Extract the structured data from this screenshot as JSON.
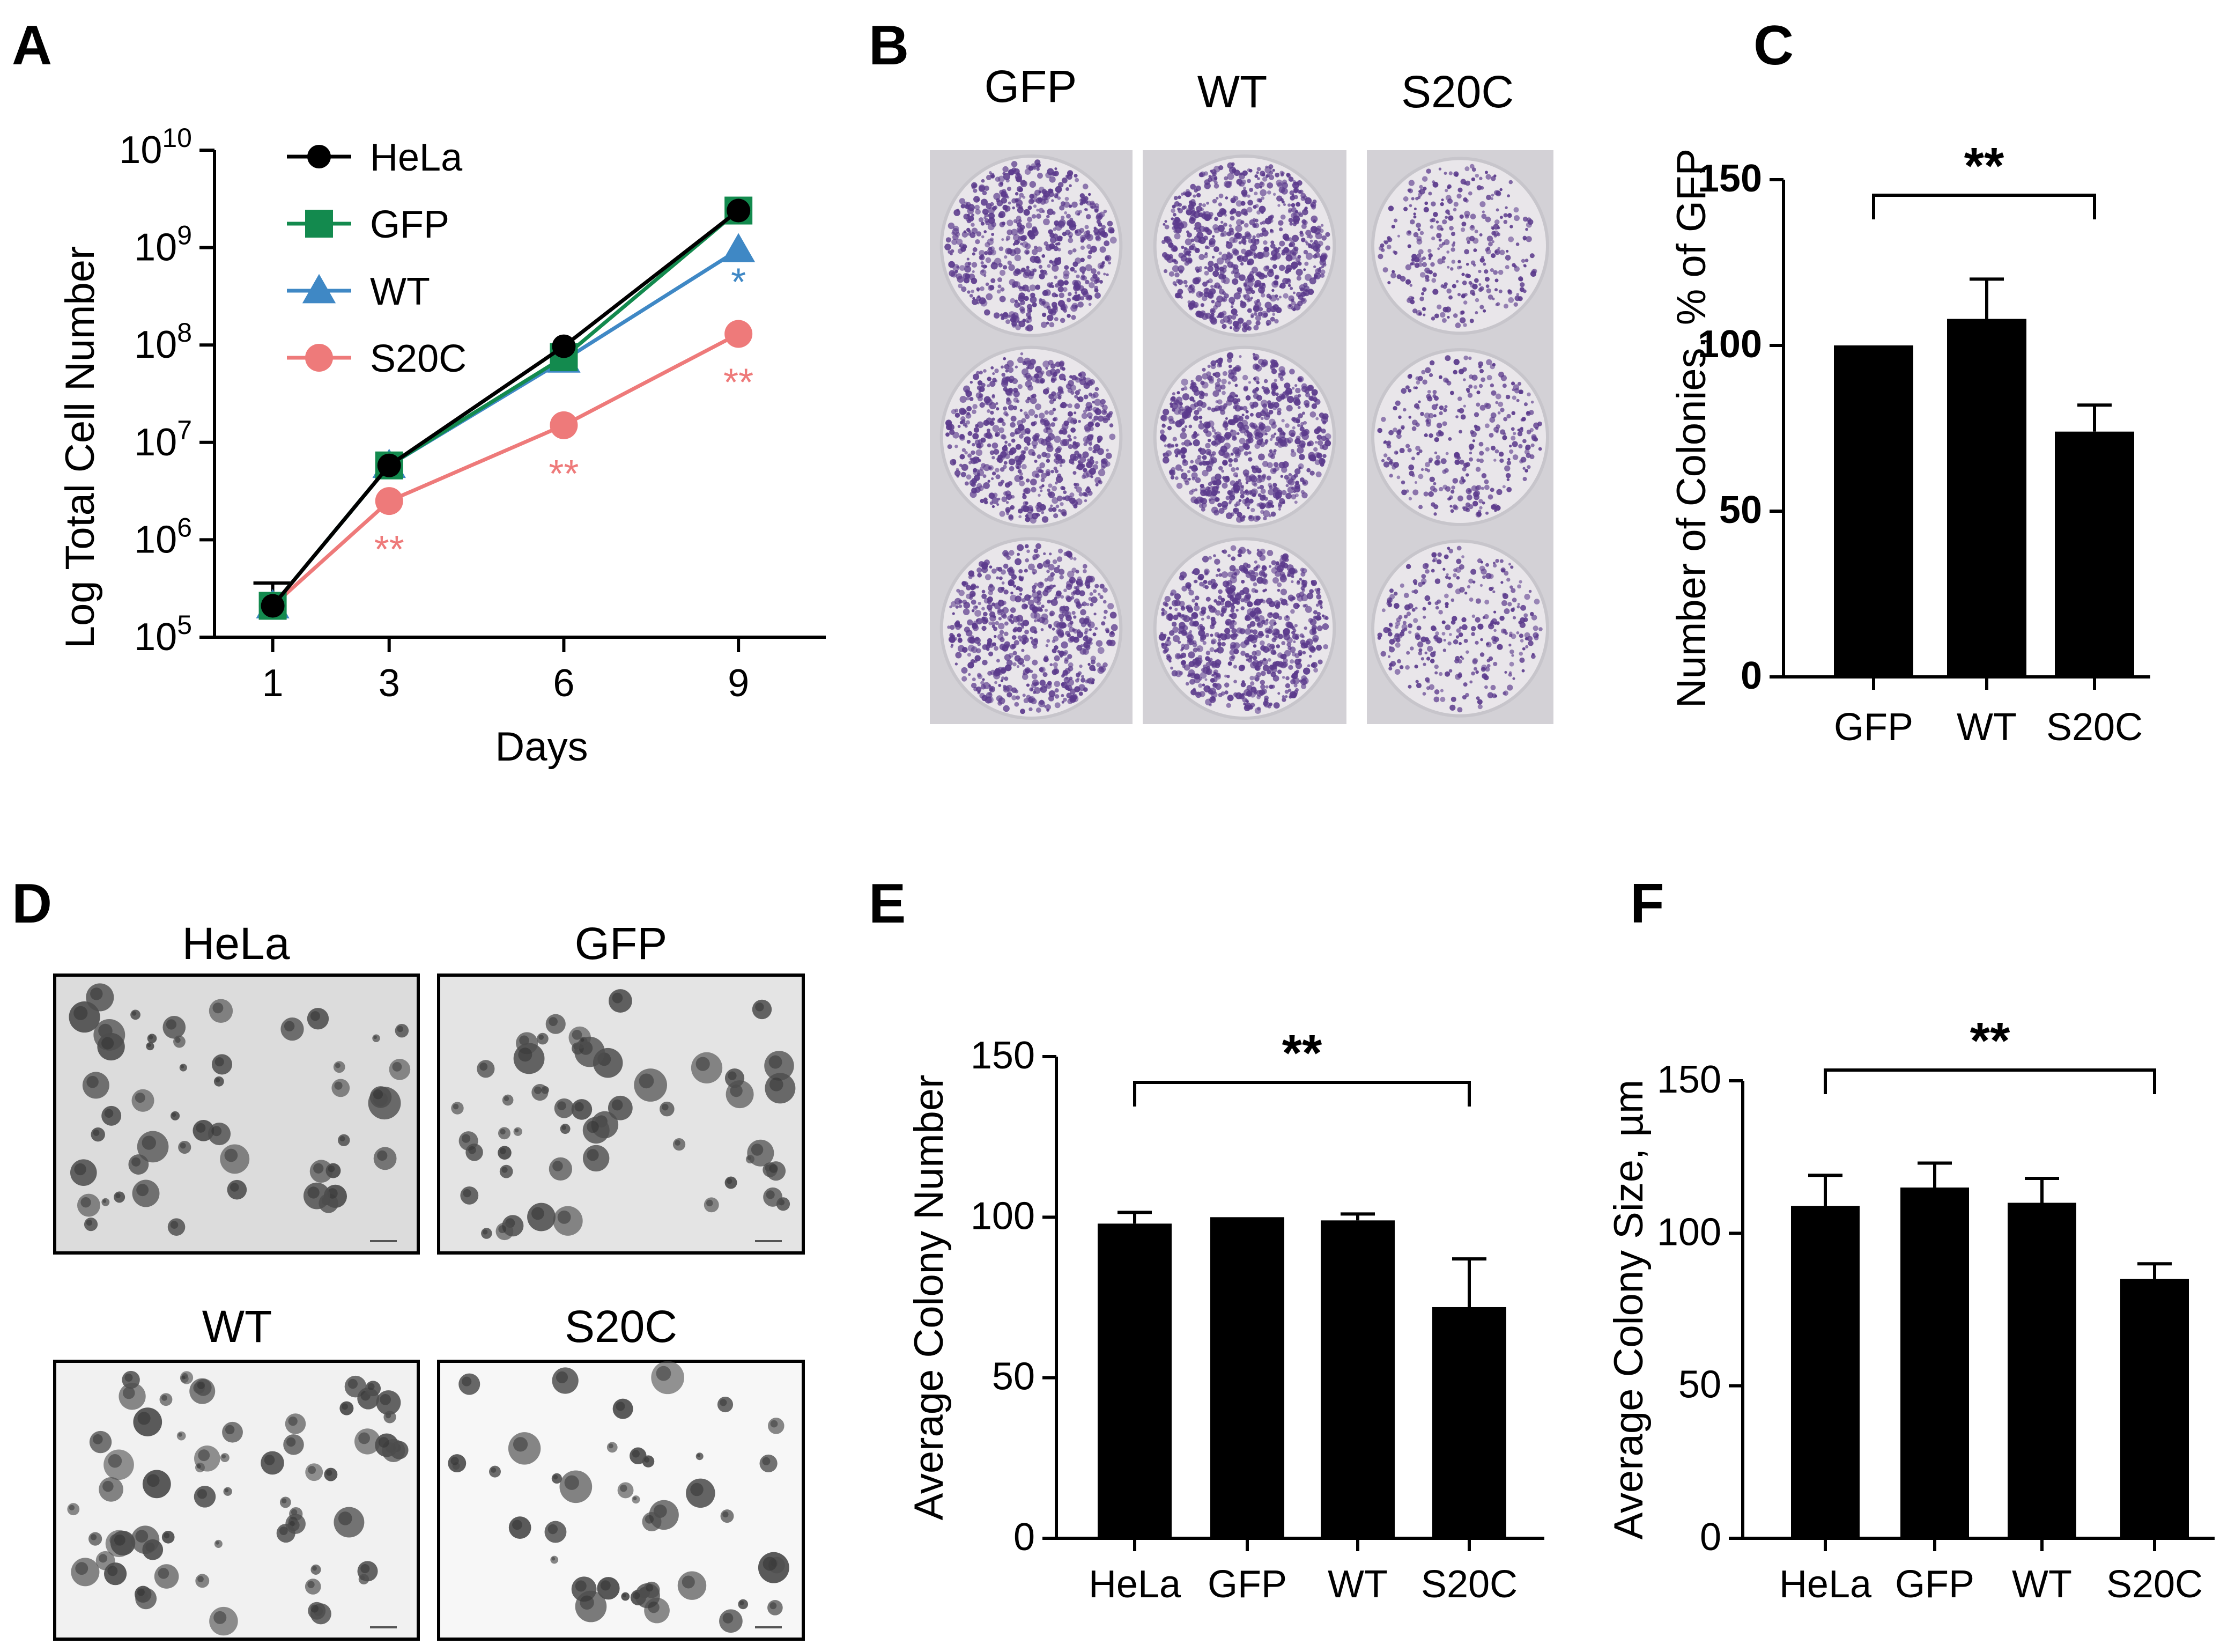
{
  "panels": {
    "A": "A",
    "B": "B",
    "C": "C",
    "D": "D",
    "E": "E",
    "F": "F"
  },
  "colors": {
    "HeLa": "#000000",
    "GFP": "#138a4e",
    "WT": "#3f88c5",
    "S20C": "#ee7a7a",
    "bar": "#000000",
    "crystal_violet": "#5b3a8c",
    "well_bg": "#e9e6ea",
    "plate_bg": "#d3d1d6"
  },
  "photo_labels": {
    "B": [
      "GFP",
      "WT",
      "S20C"
    ],
    "D": [
      "HeLa",
      "GFP",
      "WT",
      "S20C"
    ]
  },
  "chart_data": [
    {
      "id": "A",
      "type": "line",
      "xlabel": "Days",
      "ylabel": "Log Total Cell Number",
      "x": [
        1,
        3,
        6,
        9
      ],
      "x_ticks": [
        "1",
        "3",
        "6",
        "9"
      ],
      "y_scale": "log",
      "ylim": [
        100000,
        10000000000
      ],
      "y_tick_exponents": [
        "5",
        "6",
        "7",
        "8",
        "9",
        "10"
      ],
      "y_tick_base": "10",
      "legend": [
        "HeLa",
        "GFP",
        "WT",
        "S20C"
      ],
      "legend_position": "top-left",
      "series": [
        {
          "name": "HeLa",
          "marker": "circle",
          "values": [
            210000,
            5800000,
            97000000,
            2400000000
          ]
        },
        {
          "name": "GFP",
          "marker": "square",
          "values": [
            210000,
            5800000,
            75000000,
            2400000000
          ]
        },
        {
          "name": "WT",
          "marker": "triangle",
          "values": [
            210000,
            5800000,
            70000000,
            950000000
          ]
        },
        {
          "name": "S20C",
          "marker": "circle",
          "values": [
            210000,
            2500000,
            15000000,
            130000000
          ]
        }
      ],
      "error_bar": {
        "x": 1,
        "upper": 360000
      },
      "annotations": [
        {
          "x": 3,
          "text": "**",
          "series": "S20C"
        },
        {
          "x": 6,
          "text": "**",
          "series": "S20C"
        },
        {
          "x": 9,
          "text": "**",
          "series": "S20C"
        },
        {
          "x": 9,
          "text": "*",
          "series": "WT"
        }
      ]
    },
    {
      "id": "C",
      "type": "bar",
      "categories": [
        "GFP",
        "WT",
        "S20C"
      ],
      "values": [
        100,
        108,
        74
      ],
      "errors": [
        0,
        12,
        8
      ],
      "ylabel": "Number of Colonies, % of GFP",
      "ylim": [
        0,
        150
      ],
      "y_ticks": [
        0,
        50,
        100,
        150
      ],
      "significance": {
        "from": "GFP",
        "to": "S20C",
        "text": "**"
      }
    },
    {
      "id": "E",
      "type": "bar",
      "categories": [
        "HeLa",
        "GFP",
        "WT",
        "S20C"
      ],
      "values": [
        98,
        100,
        99,
        72
      ],
      "errors": [
        3.5,
        0,
        2,
        15
      ],
      "ylabel": "Average Colony Number",
      "ylim": [
        0,
        150
      ],
      "y_ticks": [
        0,
        50,
        100,
        150
      ],
      "significance": {
        "from": "HeLa",
        "to": "S20C",
        "text": "**"
      }
    },
    {
      "id": "F",
      "type": "bar",
      "categories": [
        "HeLa",
        "GFP",
        "WT",
        "S20C"
      ],
      "values": [
        109,
        115,
        110,
        85
      ],
      "errors": [
        10,
        8,
        8,
        5
      ],
      "ylabel": "Average Colony Size, µm",
      "ylim": [
        0,
        150
      ],
      "y_ticks": [
        0,
        50,
        100,
        150
      ],
      "significance": {
        "from": "HeLa",
        "to": "S20C",
        "text": "**"
      }
    }
  ]
}
